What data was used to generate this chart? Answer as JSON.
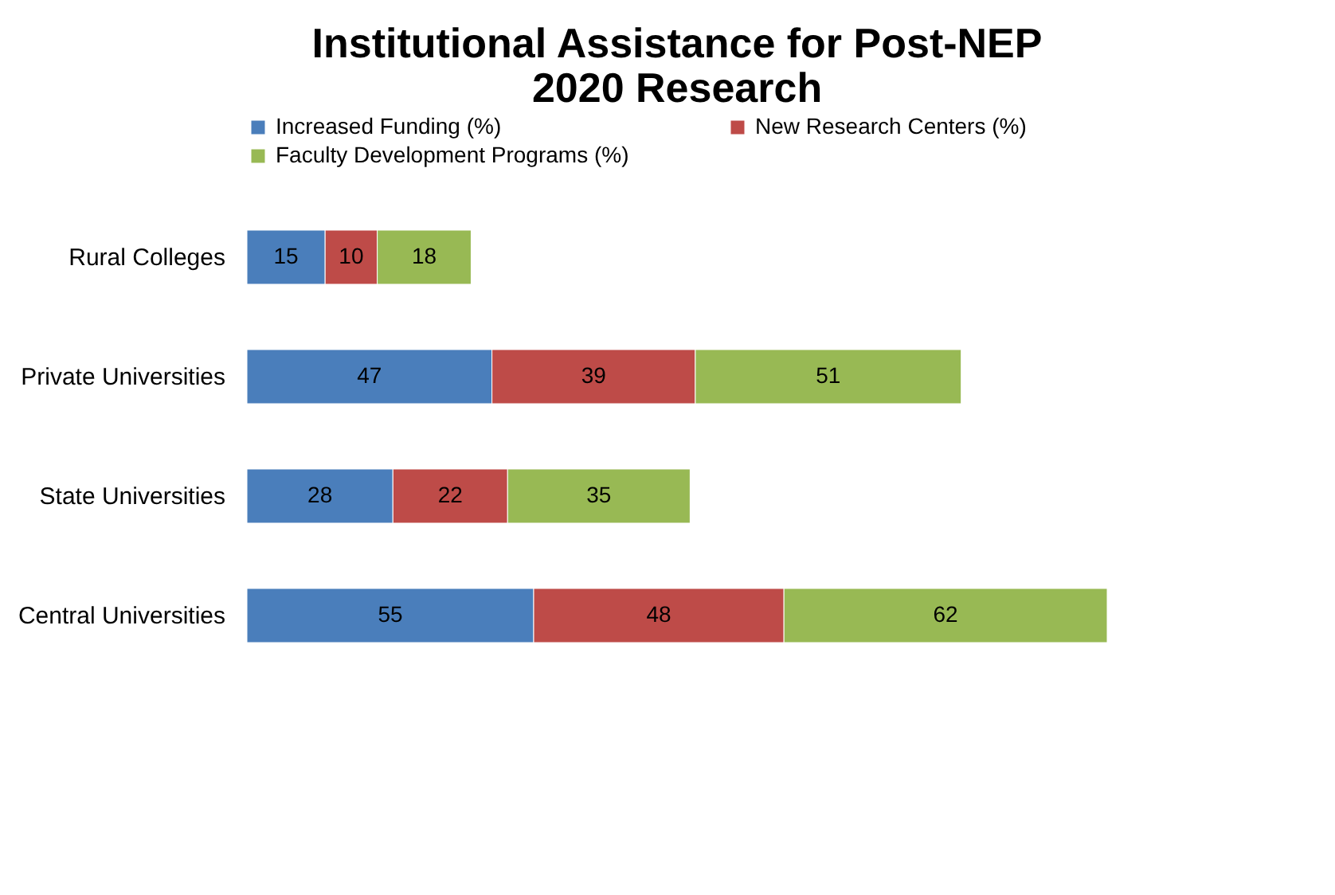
{
  "chart_data": {
    "type": "bar",
    "orientation": "horizontal",
    "stacked": true,
    "title": "Institutional Assistance for Post-NEP\n2020 Research",
    "categories": [
      "Rural Colleges",
      "Private Universities",
      "State Universities",
      "Central Universities"
    ],
    "series": [
      {
        "name": "Increased Funding (%)",
        "color": "#4a7ebb",
        "values": [
          15,
          47,
          28,
          55
        ]
      },
      {
        "name": "New Research Centers (%)",
        "color": "#be4b48",
        "values": [
          10,
          39,
          22,
          48
        ]
      },
      {
        "name": "Faculty Development Programs (%)",
        "color": "#98b954",
        "values": [
          18,
          51,
          35,
          62
        ]
      }
    ],
    "data_labels": true,
    "legend": "top",
    "tick_labels": "y"
  }
}
